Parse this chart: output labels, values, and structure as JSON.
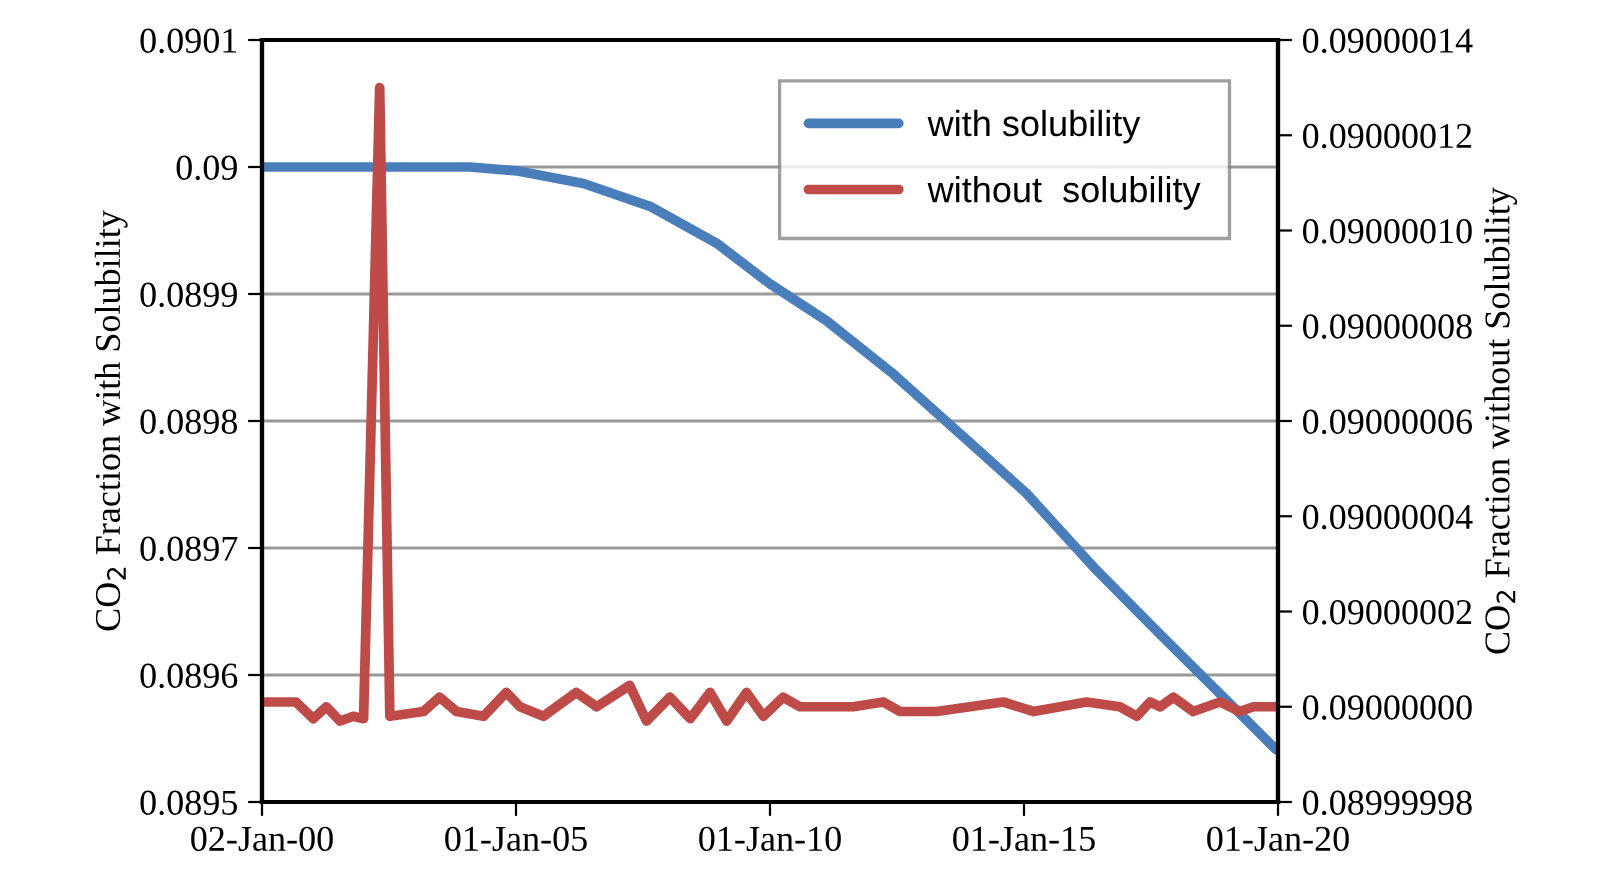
{
  "chart_data": {
    "type": "line",
    "ylabel": "CO$_{2}$ Fraction with Solubility",
    "y2label": "CO$_{2}$ Fraction without Solubility",
    "xlim": [
      "2000-01-02",
      "2020-01-01"
    ],
    "xticks": [
      {
        "value": "2000-01-02",
        "label": "02-Jan-00"
      },
      {
        "value": "2005-01-01",
        "label": "01-Jan-05"
      },
      {
        "value": "2010-01-01",
        "label": "01-Jan-10"
      },
      {
        "value": "2015-01-01",
        "label": "01-Jan-15"
      },
      {
        "value": "2020-01-01",
        "label": "01-Jan-20"
      }
    ],
    "ylim": [
      0.0895,
      0.0901
    ],
    "yticks": [
      0.0895,
      0.0896,
      0.0897,
      0.0898,
      0.0899,
      0.09,
      0.0901
    ],
    "y2lim": [
      0.08999998,
      0.09000014
    ],
    "y2ticks": [
      {
        "value": 0.08999998,
        "label": "0.08999998"
      },
      {
        "value": 0.09,
        "label": "0.09000000"
      },
      {
        "value": 0.09000002,
        "label": "0.09000002"
      },
      {
        "value": 0.09000004,
        "label": "0.09000004"
      },
      {
        "value": 0.09000006,
        "label": "0.09000006"
      },
      {
        "value": 0.09000008,
        "label": "0.09000008"
      },
      {
        "value": 0.0900001,
        "label": "0.09000010"
      },
      {
        "value": 0.09000012,
        "label": "0.09000012"
      },
      {
        "value": 0.09000014,
        "label": "0.09000014"
      }
    ],
    "grid": "y",
    "legend": "top right",
    "series": [
      {
        "name": "with solubility",
        "color": "#4a7ebb",
        "x": [
          "2000-01-02",
          "2004-02-03",
          "2005-01-05",
          "2006-05-01",
          "2007-08-22",
          "2008-12-13",
          "2010-01-01",
          "2011-02-10",
          "2012-06-06",
          "2013-09-27",
          "2015-01-19",
          "2016-05-15",
          "2017-09-06",
          "2018-12-28",
          "2019-12-20"
        ],
        "values": [
          0.09,
          0.09,
          0.089997,
          0.089987,
          0.089969,
          0.08994,
          0.089908,
          0.089879,
          0.089837,
          0.08979,
          0.089743,
          0.089685,
          0.089632,
          0.08958,
          0.089541
        ]
      },
      {
        "name": "without  solubility",
        "color": "#be4b48",
        "axis": "y2",
        "x": [
          "2000-01-12",
          "2000-09-02",
          "2001-01-05",
          "2001-04-09",
          "2001-07-16",
          "2001-10-20",
          "2002-01-01",
          "2002-04-27",
          "2002-07-09",
          "2003-03-08",
          "2003-07-02",
          "2003-10-31",
          "2004-05-12",
          "2004-10-23",
          "2005-01-30",
          "2005-07-17",
          "2006-03-10",
          "2006-08-04",
          "2007-03-29",
          "2007-07-28",
          "2008-01-12",
          "2008-06-07",
          "2008-10-27",
          "2009-02-24",
          "2009-07-16",
          "2009-11-14",
          "2010-04-05",
          "2010-08-04",
          "2011-08-23",
          "2012-03-25",
          "2012-07-24",
          "2013-04-13",
          "2014-08-04",
          "2015-03-11",
          "2016-03-25",
          "2016-11-20",
          "2017-03-22",
          "2017-06-25",
          "2017-09-06",
          "2017-12-10",
          "2018-05-01",
          "2018-11-10",
          "2019-04-02",
          "2019-07-08",
          "2019-12-20"
        ],
        "values": [
          0.090000001,
          0.090000001,
          0.0899999975,
          0.09,
          0.089999997,
          0.089999998,
          0.0899999975,
          0.09000013,
          0.089999998,
          0.089999999,
          0.090000002,
          0.089999999,
          0.089999998,
          0.090000003,
          0.09,
          0.089999998,
          0.090000003,
          0.09,
          0.0900000045,
          0.089999997,
          0.090000002,
          0.0899999975,
          0.090000003,
          0.089999997,
          0.090000003,
          0.089999998,
          0.090000002,
          0.09,
          0.09,
          0.090000001,
          0.089999999,
          0.089999999,
          0.090000001,
          0.089999999,
          0.090000001,
          0.09,
          0.089999998,
          0.090000001,
          0.09,
          0.090000002,
          0.089999999,
          0.090000001,
          0.089999999,
          0.09,
          0.09
        ]
      }
    ]
  }
}
